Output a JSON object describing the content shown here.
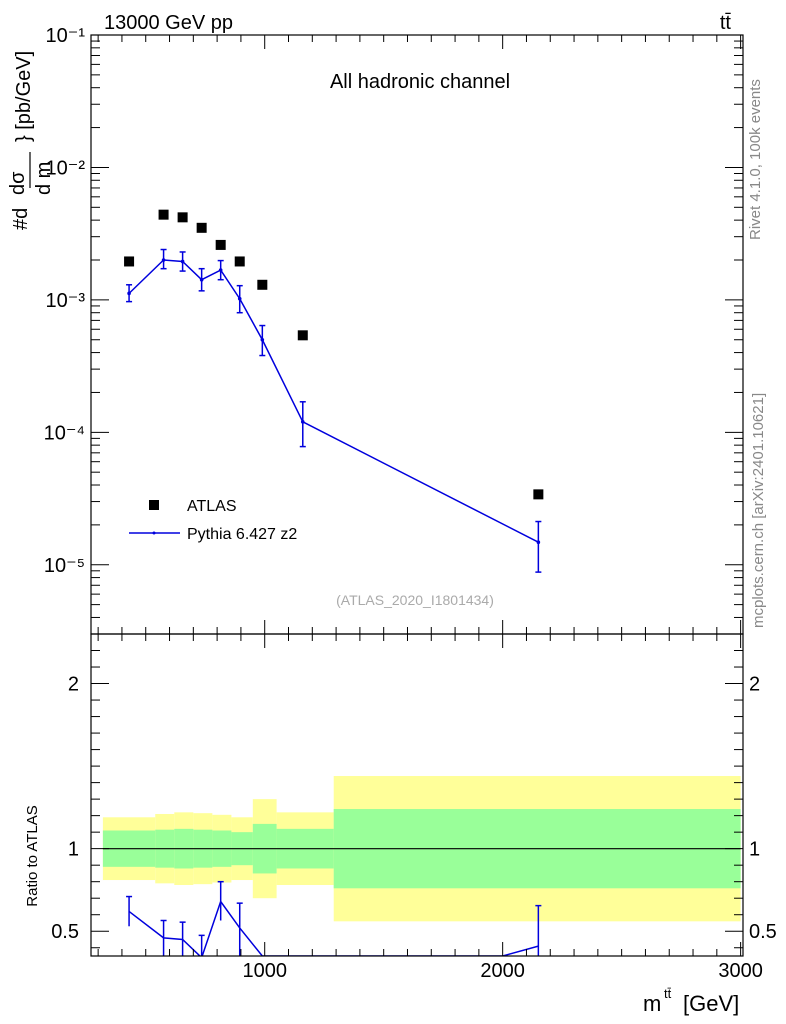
{
  "header": {
    "energy_label": "13000 GeV pp",
    "process_label": "tt̄"
  },
  "side_labels": {
    "rivet": "Rivet 4.1.0,  100k events",
    "mcplots": "mcplots.cern.ch [arXiv:2401.10621]"
  },
  "chart_data": [
    {
      "type": "scatter",
      "title": "All hadronic channel",
      "analysis_tag": "(ATLAS_2020_I1801434)",
      "ylabel": "#d dσ^{tt̄} / d m^{tt̄} [pb/GeV]",
      "yscale": "log",
      "ylim": [
        3e-06,
        0.1
      ],
      "xlim": [
        270,
        3010
      ],
      "ytick_labels": [
        "10⁻⁵",
        "10⁻⁴",
        "10⁻³",
        "10⁻²",
        "10⁻¹"
      ],
      "legend": [
        "ATLAS",
        "Pythia 6.427 z2"
      ],
      "series": [
        {
          "name": "ATLAS",
          "style": "markers",
          "color": "#000000",
          "x": [
            430,
            575,
            655,
            735,
            815,
            895,
            990,
            1160,
            2150
          ],
          "y": [
            0.00195,
            0.0044,
            0.0042,
            0.0035,
            0.0026,
            0.00195,
            0.0013,
            0.00054,
            3.4e-05
          ]
        },
        {
          "name": "Pythia 6.427 z2",
          "style": "line",
          "color": "#0000dd",
          "x": [
            430,
            575,
            655,
            735,
            815,
            895,
            990,
            1160,
            2150
          ],
          "y": [
            0.00112,
            0.002,
            0.00195,
            0.00142,
            0.00168,
            0.00102,
            0.0005,
            0.00012,
            1.48e-05
          ],
          "err_low": [
            0.00097,
            0.00172,
            0.00165,
            0.00117,
            0.00142,
            0.0008,
            0.00038,
            7.8e-05,
            8.8e-06
          ],
          "err_high": [
            0.0013,
            0.0024,
            0.0023,
            0.00172,
            0.00198,
            0.00128,
            0.00064,
            0.00017,
            2.12e-05
          ]
        }
      ]
    },
    {
      "type": "line",
      "ylabel": "Ratio to ATLAS",
      "xlabel": "m^{tt̄} [GeV]",
      "ylim": [
        0.35,
        2.3
      ],
      "xlim": [
        270,
        3010
      ],
      "xtick_labels": [
        "1000",
        "2000",
        "3000"
      ],
      "ytick_labels": [
        "0.5",
        "1",
        "2"
      ],
      "bins": [
        {
          "x0": 320,
          "x1": 540,
          "inner": 0.11,
          "outer": 0.19
        },
        {
          "x0": 540,
          "x1": 620,
          "inner": 0.115,
          "outer": 0.21
        },
        {
          "x0": 620,
          "x1": 700,
          "inner": 0.12,
          "outer": 0.22
        },
        {
          "x0": 700,
          "x1": 780,
          "inner": 0.115,
          "outer": 0.215
        },
        {
          "x0": 780,
          "x1": 860,
          "inner": 0.11,
          "outer": 0.205
        },
        {
          "x0": 860,
          "x1": 950,
          "inner": 0.1,
          "outer": 0.19
        },
        {
          "x0": 950,
          "x1": 1050,
          "inner": 0.15,
          "outer": 0.3
        },
        {
          "x0": 1050,
          "x1": 1290,
          "inner": 0.12,
          "outer": 0.22
        },
        {
          "x0": 1290,
          "x1": 3000,
          "inner": 0.24,
          "outer": 0.44
        }
      ],
      "series": [
        {
          "name": "Pythia 6.427 z2",
          "color": "#0000dd",
          "x": [
            430,
            575,
            655,
            735,
            815,
            895,
            990,
            2000,
            2150
          ],
          "y": [
            0.62,
            0.46,
            0.45,
            0.34,
            0.68,
            0.52,
            0.35,
            0.35,
            0.41
          ],
          "err_points": [
            {
              "x": 430,
              "lo": 0.53,
              "hi": 0.71
            },
            {
              "x": 575,
              "lo": 0.35,
              "hi": 0.565
            },
            {
              "x": 655,
              "lo": 0.35,
              "hi": 0.555
            },
            {
              "x": 735,
              "lo": 0.35,
              "hi": 0.475
            },
            {
              "x": 815,
              "lo": 0.565,
              "hi": 0.8
            },
            {
              "x": 895,
              "lo": 0.35,
              "hi": 0.67
            },
            {
              "x": 2150,
              "lo": 0.35,
              "hi": 0.655
            }
          ]
        }
      ]
    }
  ]
}
